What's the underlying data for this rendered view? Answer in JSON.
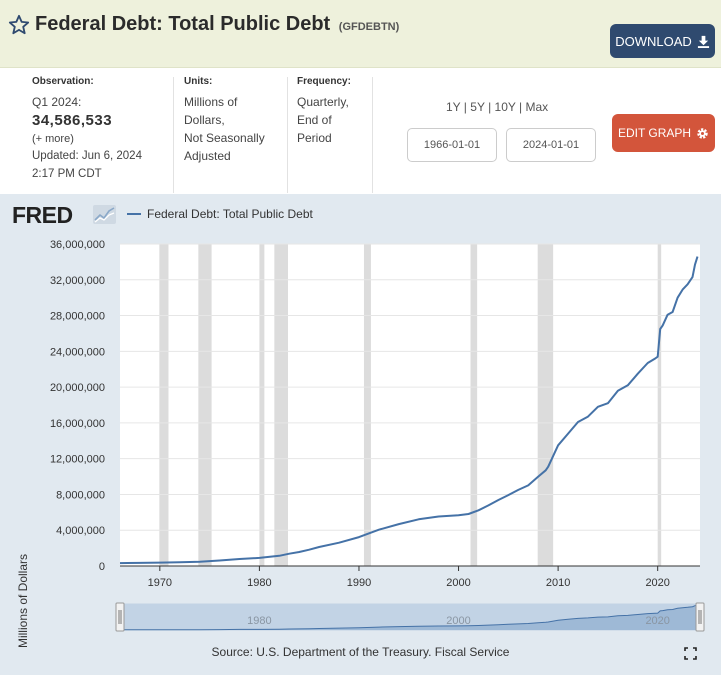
{
  "header": {
    "title": "Federal Debt: Total Public Debt",
    "series_id": "(GFDEBTN)",
    "download_label": "DOWNLOAD"
  },
  "meta": {
    "observation_label": "Observation:",
    "observation_period": "Q1 2024:",
    "observation_value": "34,586,533",
    "more_label": "(+ more)",
    "updated": "Updated: Jun 6, 2024",
    "updated_time": "2:17 PM CDT",
    "units_label": "Units:",
    "units_lines": [
      "Millions of",
      "Dollars,",
      "Not Seasonally",
      "Adjusted"
    ],
    "frequency_label": "Frequency:",
    "frequency_lines": [
      "Quarterly,",
      "End of",
      "Period"
    ]
  },
  "controls": {
    "range_options": [
      "1Y",
      "5Y",
      "10Y",
      "Max"
    ],
    "separator": " | ",
    "start_date": "1966-01-01",
    "end_date": "2024-01-01",
    "edit_label": "EDIT GRAPH"
  },
  "footer": {
    "source": "Source: U.S. Department of the Treasury. Fiscal Service"
  },
  "brand": {
    "logo_text": "FRED"
  },
  "colors": {
    "series": "#4572a7",
    "recession": "#dcdcdc",
    "download_bg": "#2f4a6f",
    "edit_bg": "#d3553b",
    "chart_bg": "#e1e9f0",
    "header_bg": "#eef1dc"
  },
  "chart_data": {
    "type": "line",
    "title": "Federal Debt: Total Public Debt",
    "xlabel": "",
    "ylabel": "Millions of Dollars",
    "legend": "top-left",
    "grid": true,
    "xlim": [
      1966.0,
      2024.25
    ],
    "ylim": [
      0,
      36000000
    ],
    "yticks": [
      0,
      4000000,
      8000000,
      12000000,
      16000000,
      20000000,
      24000000,
      28000000,
      32000000,
      36000000
    ],
    "ytick_labels": [
      "0",
      "4,000,000",
      "8,000,000",
      "12,000,000",
      "16,000,000",
      "20,000,000",
      "24,000,000",
      "28,000,000",
      "32,000,000",
      "36,000,000"
    ],
    "xticks": [
      1970,
      1980,
      1990,
      2000,
      2010,
      2020
    ],
    "xtick_labels": [
      "1970",
      "1980",
      "1990",
      "2000",
      "2010",
      "2020"
    ],
    "recessions": [
      [
        1969.95,
        1970.87
      ],
      [
        1973.87,
        1975.2
      ],
      [
        1980.0,
        1980.5
      ],
      [
        1981.5,
        1982.87
      ],
      [
        1990.5,
        1991.2
      ],
      [
        2001.2,
        2001.87
      ],
      [
        2007.95,
        2009.5
      ],
      [
        2020.0,
        2020.35
      ]
    ],
    "navigator": {
      "labels": [
        "1980",
        "2000",
        "2020"
      ]
    },
    "series": [
      {
        "name": "Federal Debt: Total Public Debt",
        "x": [
          1966,
          1968,
          1970,
          1972,
          1974,
          1976,
          1978,
          1980,
          1982,
          1983,
          1984,
          1985,
          1986,
          1988,
          1990,
          1992,
          1994,
          1996,
          1998,
          2000,
          2001,
          2002,
          2003,
          2004,
          2005,
          2006,
          2007,
          2008,
          2008.75,
          2009,
          2010,
          2011,
          2012,
          2013,
          2014,
          2015,
          2016,
          2017,
          2018,
          2019,
          2019.75,
          2020,
          2020.25,
          2020.5,
          2021,
          2021.5,
          2022,
          2022.5,
          2023,
          2023.5,
          2023.75,
          2024
        ],
        "values": [
          320000,
          345000,
          380000,
          430000,
          480000,
          620000,
          780000,
          900000,
          1140000,
          1380000,
          1570000,
          1820000,
          2120000,
          2600000,
          3230000,
          4060000,
          4690000,
          5220000,
          5530000,
          5670000,
          5810000,
          6230000,
          6780000,
          7380000,
          7930000,
          8510000,
          9010000,
          10000000,
          10700000,
          11100000,
          13500000,
          14800000,
          16100000,
          16700000,
          17800000,
          18200000,
          19600000,
          20200000,
          21500000,
          22700000,
          23200000,
          23400000,
          26500000,
          26900000,
          28100000,
          28400000,
          30000000,
          30900000,
          31500000,
          32300000,
          33700000,
          34586533
        ]
      }
    ]
  }
}
